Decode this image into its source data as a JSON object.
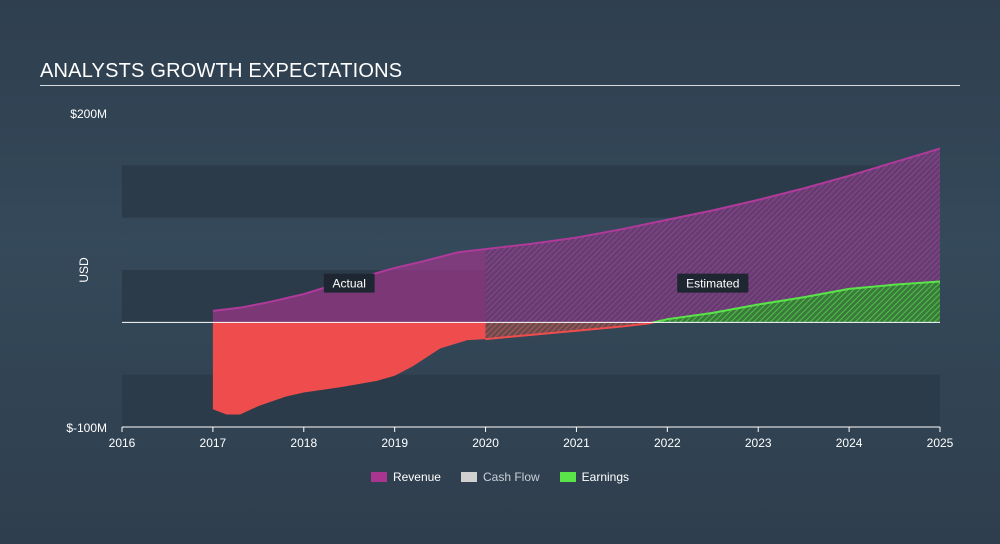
{
  "title": "ANALYSTS GROWTH EXPECTATIONS",
  "colors": {
    "revenue": "#a8368f",
    "cash_flow": "#d0d0d0",
    "earnings": "#5be34a",
    "negative": "#ef4d4d",
    "band": "#2b3a48"
  },
  "legend": [
    {
      "key": "revenue",
      "label": "Revenue"
    },
    {
      "key": "cash_flow",
      "label": "Cash Flow"
    },
    {
      "key": "earnings",
      "label": "Earnings"
    }
  ],
  "chart_data": {
    "type": "area",
    "title": "ANALYSTS GROWTH EXPECTATIONS",
    "ylabel": "USD",
    "xlim": [
      2016,
      2025
    ],
    "ylim": [
      -100,
      200
    ],
    "y_tick_labels": [
      {
        "value": 200,
        "label": "$200M"
      },
      {
        "value": -100,
        "label": "$-100M"
      }
    ],
    "x_ticks": [
      2016,
      2017,
      2018,
      2019,
      2020,
      2021,
      2022,
      2023,
      2024,
      2025
    ],
    "actual_end": 2020,
    "annotations": [
      {
        "text": "Actual",
        "x": 2018.5,
        "y": 37
      },
      {
        "text": "Estimated",
        "x": 2022.5,
        "y": 37
      }
    ],
    "series": [
      {
        "name": "Revenue",
        "x": [
          2017.0,
          2017.3,
          2017.6,
          2018.0,
          2018.3,
          2018.6,
          2019.0,
          2019.3,
          2019.7,
          2020.0,
          2020.5,
          2021.0,
          2021.5,
          2022.0,
          2022.5,
          2023.0,
          2023.5,
          2024.0,
          2024.5,
          2025.0
        ],
        "y": [
          11,
          14,
          19,
          27,
          35,
          42,
          52,
          58,
          67,
          70,
          75,
          81,
          89,
          98,
          107,
          117,
          128,
          140,
          153,
          166
        ]
      },
      {
        "name": "Earnings",
        "x": [
          2017.0,
          2017.15,
          2017.3,
          2017.5,
          2017.8,
          2018.0,
          2018.4,
          2018.8,
          2019.0,
          2019.2,
          2019.5,
          2019.8,
          2020.0,
          2020.5,
          2021.0,
          2021.5,
          2021.8,
          2022.0,
          2022.5,
          2023.0,
          2023.5,
          2024.0,
          2024.5,
          2025.0
        ],
        "y": [
          -83,
          -88,
          -88,
          -80,
          -71,
          -67,
          -62,
          -56,
          -51,
          -42,
          -25,
          -17,
          -16,
          -12,
          -8,
          -4,
          -1,
          3,
          9,
          17,
          24,
          32,
          36,
          39
        ]
      }
    ]
  }
}
